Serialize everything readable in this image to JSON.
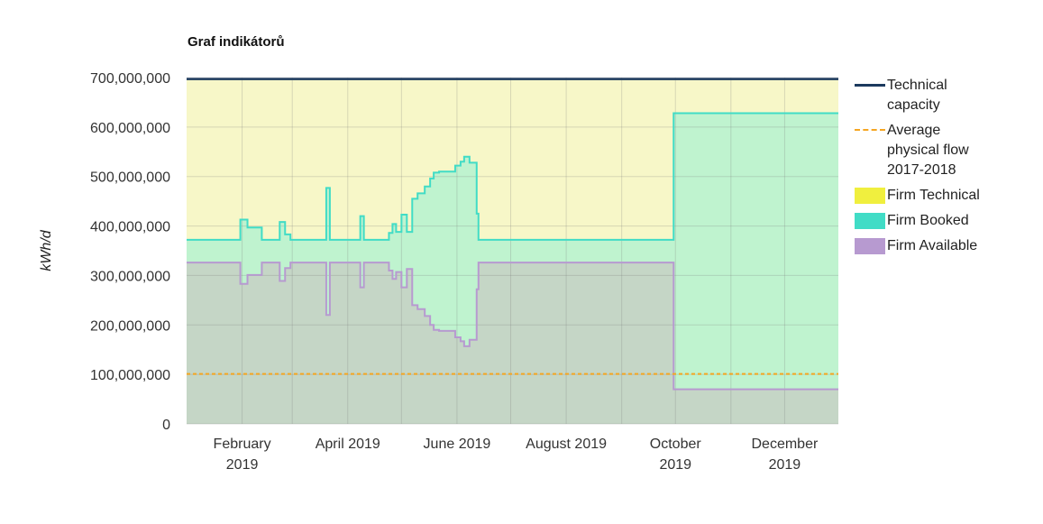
{
  "title": "Graf indikátorů",
  "chart_data": {
    "type": "area",
    "title": "Graf indikátorů",
    "ylabel": "kWh/d",
    "xlabel": "",
    "ylim": [
      0,
      700000000
    ],
    "xlim": [
      "2019-01-01",
      "2019-12-31"
    ],
    "y_ticks": [
      0,
      100000000,
      200000000,
      300000000,
      400000000,
      500000000,
      600000000,
      700000000
    ],
    "y_tick_labels": [
      "0",
      "100,000,000",
      "200,000,000",
      "300,000,000",
      "400,000,000",
      "500,000,000",
      "600,000,000",
      "700,000,000"
    ],
    "x_ticks": [
      {
        "date": "2019-02-01",
        "label_line1": "February",
        "label_line2": "2019"
      },
      {
        "date": "2019-04-01",
        "label_line1": "April 2019",
        "label_line2": ""
      },
      {
        "date": "2019-06-01",
        "label_line1": "June 2019",
        "label_line2": ""
      },
      {
        "date": "2019-08-01",
        "label_line1": "August 2019",
        "label_line2": ""
      },
      {
        "date": "2019-10-01",
        "label_line1": "October",
        "label_line2": "2019"
      },
      {
        "date": "2019-12-01",
        "label_line1": "December",
        "label_line2": "2019"
      }
    ],
    "grid": true,
    "legend_position": "right",
    "series": [
      {
        "name": "Firm Technical",
        "kind": "area",
        "color": "#f7f7c8",
        "legend_color": "#f0ef3e",
        "points": [
          [
            "2019-01-01",
            697000000
          ],
          [
            "2019-12-31",
            697000000
          ]
        ]
      },
      {
        "name": "Firm Booked",
        "kind": "step-area",
        "color": "#41dcc6",
        "fill": "#bff3cf",
        "points": [
          [
            "2019-01-01",
            372000000
          ],
          [
            "2019-01-31",
            372000000
          ],
          [
            "2019-01-31",
            413000000
          ],
          [
            "2019-02-04",
            413000000
          ],
          [
            "2019-02-04",
            397000000
          ],
          [
            "2019-02-12",
            397000000
          ],
          [
            "2019-02-12",
            372000000
          ],
          [
            "2019-02-22",
            372000000
          ],
          [
            "2019-02-22",
            408000000
          ],
          [
            "2019-02-25",
            408000000
          ],
          [
            "2019-02-25",
            383000000
          ],
          [
            "2019-02-28",
            383000000
          ],
          [
            "2019-02-28",
            372000000
          ],
          [
            "2019-03-20",
            372000000
          ],
          [
            "2019-03-20",
            477000000
          ],
          [
            "2019-03-22",
            477000000
          ],
          [
            "2019-03-22",
            372000000
          ],
          [
            "2019-04-08",
            372000000
          ],
          [
            "2019-04-08",
            420000000
          ],
          [
            "2019-04-10",
            420000000
          ],
          [
            "2019-04-10",
            372000000
          ],
          [
            "2019-04-24",
            372000000
          ],
          [
            "2019-04-24",
            386000000
          ],
          [
            "2019-04-26",
            386000000
          ],
          [
            "2019-04-26",
            404000000
          ],
          [
            "2019-04-28",
            404000000
          ],
          [
            "2019-04-28",
            388000000
          ],
          [
            "2019-05-01",
            388000000
          ],
          [
            "2019-05-01",
            423000000
          ],
          [
            "2019-05-04",
            423000000
          ],
          [
            "2019-05-04",
            388000000
          ],
          [
            "2019-05-07",
            388000000
          ],
          [
            "2019-05-07",
            455000000
          ],
          [
            "2019-05-10",
            455000000
          ],
          [
            "2019-05-10",
            466000000
          ],
          [
            "2019-05-14",
            466000000
          ],
          [
            "2019-05-14",
            480000000
          ],
          [
            "2019-05-17",
            480000000
          ],
          [
            "2019-05-17",
            496000000
          ],
          [
            "2019-05-19",
            496000000
          ],
          [
            "2019-05-19",
            508000000
          ],
          [
            "2019-05-22",
            508000000
          ],
          [
            "2019-05-22",
            510000000
          ],
          [
            "2019-05-31",
            510000000
          ],
          [
            "2019-05-31",
            522000000
          ],
          [
            "2019-06-03",
            522000000
          ],
          [
            "2019-06-03",
            530000000
          ],
          [
            "2019-06-05",
            530000000
          ],
          [
            "2019-06-05",
            540000000
          ],
          [
            "2019-06-08",
            540000000
          ],
          [
            "2019-06-08",
            528000000
          ],
          [
            "2019-06-12",
            528000000
          ],
          [
            "2019-06-12",
            425000000
          ],
          [
            "2019-06-13",
            425000000
          ],
          [
            "2019-06-13",
            372000000
          ],
          [
            "2019-09-30",
            372000000
          ],
          [
            "2019-09-30",
            628000000
          ],
          [
            "2019-12-31",
            628000000
          ]
        ]
      },
      {
        "name": "Firm Available",
        "kind": "step-area",
        "color": "#b79ad0",
        "fill": "#c5d6c6",
        "points": [
          [
            "2019-01-01",
            326000000
          ],
          [
            "2019-01-31",
            326000000
          ],
          [
            "2019-01-31",
            283000000
          ],
          [
            "2019-02-04",
            283000000
          ],
          [
            "2019-02-04",
            301000000
          ],
          [
            "2019-02-12",
            301000000
          ],
          [
            "2019-02-12",
            326000000
          ],
          [
            "2019-02-22",
            326000000
          ],
          [
            "2019-02-22",
            289000000
          ],
          [
            "2019-02-25",
            289000000
          ],
          [
            "2019-02-25",
            315000000
          ],
          [
            "2019-02-28",
            315000000
          ],
          [
            "2019-02-28",
            326000000
          ],
          [
            "2019-03-20",
            326000000
          ],
          [
            "2019-03-20",
            220000000
          ],
          [
            "2019-03-22",
            220000000
          ],
          [
            "2019-03-22",
            326000000
          ],
          [
            "2019-04-08",
            326000000
          ],
          [
            "2019-04-08",
            276000000
          ],
          [
            "2019-04-10",
            276000000
          ],
          [
            "2019-04-10",
            326000000
          ],
          [
            "2019-04-24",
            326000000
          ],
          [
            "2019-04-24",
            310000000
          ],
          [
            "2019-04-26",
            310000000
          ],
          [
            "2019-04-26",
            293000000
          ],
          [
            "2019-04-28",
            293000000
          ],
          [
            "2019-04-28",
            307000000
          ],
          [
            "2019-05-01",
            307000000
          ],
          [
            "2019-05-01",
            276000000
          ],
          [
            "2019-05-04",
            276000000
          ],
          [
            "2019-05-04",
            313000000
          ],
          [
            "2019-05-07",
            313000000
          ],
          [
            "2019-05-07",
            240000000
          ],
          [
            "2019-05-10",
            240000000
          ],
          [
            "2019-05-10",
            232000000
          ],
          [
            "2019-05-14",
            232000000
          ],
          [
            "2019-05-14",
            218000000
          ],
          [
            "2019-05-17",
            218000000
          ],
          [
            "2019-05-17",
            200000000
          ],
          [
            "2019-05-19",
            200000000
          ],
          [
            "2019-05-19",
            190000000
          ],
          [
            "2019-05-22",
            190000000
          ],
          [
            "2019-05-22",
            188000000
          ],
          [
            "2019-05-31",
            188000000
          ],
          [
            "2019-05-31",
            175000000
          ],
          [
            "2019-06-03",
            175000000
          ],
          [
            "2019-06-03",
            167000000
          ],
          [
            "2019-06-05",
            167000000
          ],
          [
            "2019-06-05",
            157000000
          ],
          [
            "2019-06-08",
            157000000
          ],
          [
            "2019-06-08",
            170000000
          ],
          [
            "2019-06-12",
            170000000
          ],
          [
            "2019-06-12",
            272000000
          ],
          [
            "2019-06-13",
            272000000
          ],
          [
            "2019-06-13",
            326000000
          ],
          [
            "2019-09-30",
            326000000
          ],
          [
            "2019-09-30",
            70000000
          ],
          [
            "2019-12-31",
            70000000
          ]
        ]
      },
      {
        "name": "Technical capacity",
        "kind": "line",
        "color": "#1c3a5e",
        "points": [
          [
            "2019-01-01",
            697000000
          ],
          [
            "2019-12-31",
            697000000
          ]
        ]
      },
      {
        "name": "Average physical flow 2017-2018",
        "kind": "dashed-line",
        "color": "#f5a623",
        "points": [
          [
            "2019-01-01",
            101000000
          ],
          [
            "2019-12-31",
            101000000
          ]
        ]
      }
    ],
    "legend": [
      {
        "label": "Technical capacity",
        "symbol": "line",
        "color": "#1c3a5e"
      },
      {
        "label": "Average physical flow 2017-2018",
        "symbol": "dashed-line",
        "color": "#f5a623"
      },
      {
        "label": "Firm Technical",
        "symbol": "box",
        "color": "#f0ef3e"
      },
      {
        "label": "Firm Booked",
        "symbol": "box",
        "color": "#41dcc6"
      },
      {
        "label": "Firm Available",
        "symbol": "box",
        "color": "#b79ad0"
      }
    ]
  }
}
